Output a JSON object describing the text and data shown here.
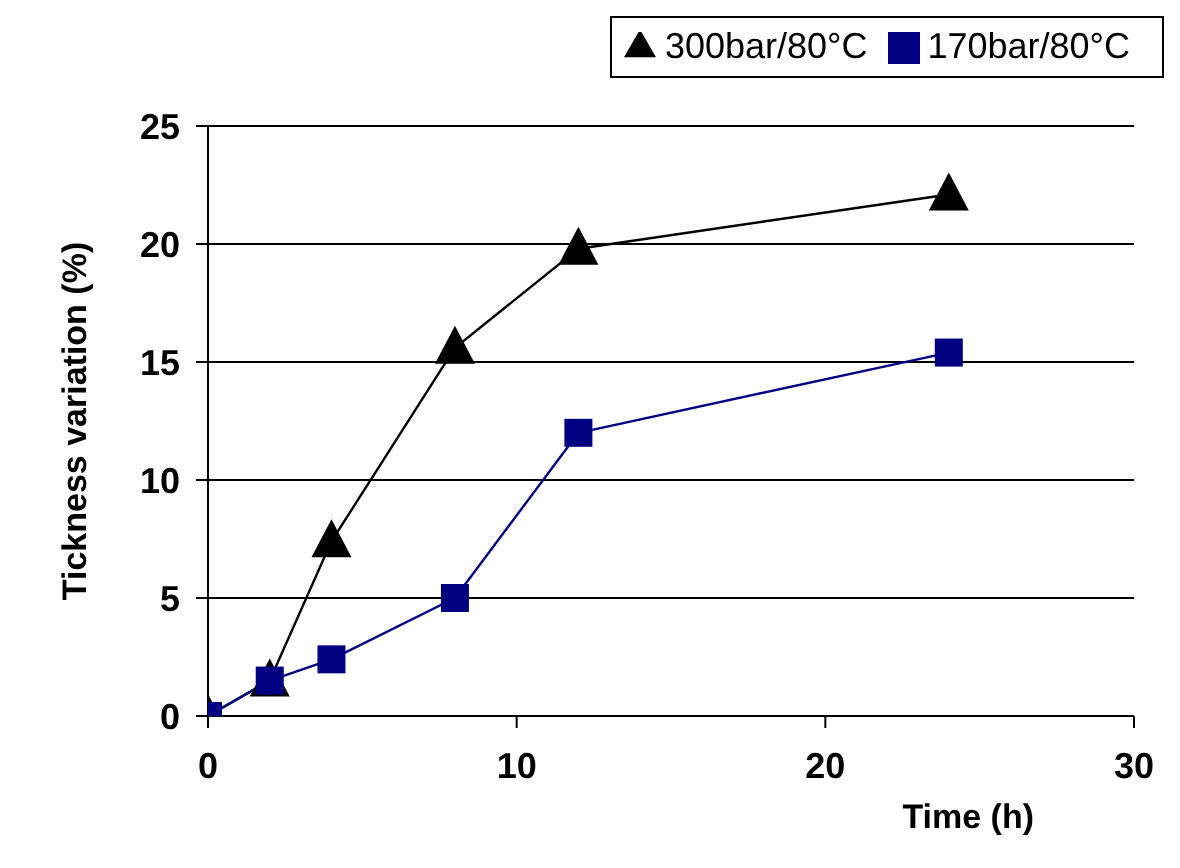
{
  "chart_data": {
    "type": "line",
    "xlabel": "Time (h)",
    "ylabel": "Tickness variation (%)",
    "xlim": [
      0,
      30
    ],
    "xticks": [
      0,
      10,
      20,
      30
    ],
    "ylim": [
      0,
      25
    ],
    "yticks": [
      0,
      5,
      10,
      15,
      20,
      25
    ],
    "grid": "y",
    "legend": "top right",
    "line_style": "solid",
    "series": [
      {
        "name": "300bar/80°C",
        "color": "#000000",
        "marker": "triangle",
        "x": [
          0,
          2,
          4,
          8,
          12,
          24
        ],
        "values": [
          0,
          1.5,
          7.4,
          15.6,
          19.8,
          22.1
        ]
      },
      {
        "name": "170bar/80°C",
        "color": "#000080",
        "marker": "square",
        "x": [
          0,
          2,
          4,
          8,
          12,
          24
        ],
        "values": [
          0,
          1.5,
          2.4,
          5.0,
          12.0,
          15.4
        ]
      }
    ]
  }
}
